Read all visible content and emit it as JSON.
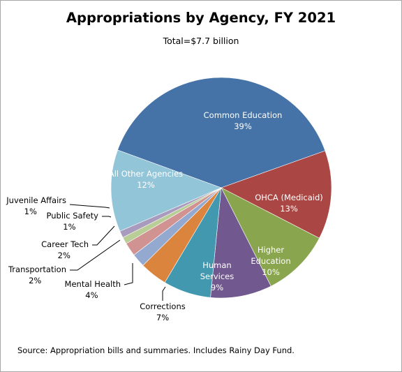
{
  "chart_data": {
    "type": "pie",
    "title": "Appropriations by Agency, FY 2021",
    "subtitle": "Total=$7.7 billion",
    "source": "Source:  Appropriation bills and summaries. Includes Rainy Day Fund.",
    "slices": [
      {
        "label_lines": [
          "Common Education"
        ],
        "label": "Common Education",
        "value": 39,
        "value_label": "39%",
        "color": "#4572a7",
        "label_inside": true
      },
      {
        "label_lines": [
          "OHCA (Medicaid)"
        ],
        "label": "OHCA (Medicaid)",
        "value": 13,
        "value_label": "13%",
        "color": "#aa4643",
        "label_inside": true
      },
      {
        "label_lines": [
          "Higher",
          "Education"
        ],
        "label": "Higher Education",
        "value": 10,
        "value_label": "10%",
        "color": "#89a54e",
        "label_inside": true
      },
      {
        "label_lines": [
          "Human",
          "Services"
        ],
        "label": "Human Services",
        "value": 9,
        "value_label": "9%",
        "color": "#71588f",
        "label_inside": true
      },
      {
        "label_lines": [
          "Corrections"
        ],
        "label": "Corrections",
        "value": 7,
        "value_label": "7%",
        "color": "#4198af",
        "label_inside": false
      },
      {
        "label_lines": [
          "Mental Health"
        ],
        "label": "Mental Health",
        "value": 4,
        "value_label": "4%",
        "color": "#db843d",
        "label_inside": false
      },
      {
        "label_lines": [
          "Transportation"
        ],
        "label": "Transportation",
        "value": 2,
        "value_label": "2%",
        "color": "#93a9cf",
        "label_inside": false
      },
      {
        "label_lines": [
          "Career Tech"
        ],
        "label": "Career Tech",
        "value": 2,
        "value_label": "2%",
        "color": "#d19392",
        "label_inside": false
      },
      {
        "label_lines": [
          "Public Safety"
        ],
        "label": "Public Safety",
        "value": 1,
        "value_label": "1%",
        "color": "#b9cd96",
        "label_inside": false
      },
      {
        "label_lines": [
          "Juvenile Affairs"
        ],
        "label": "Juvenile Affairs",
        "value": 1,
        "value_label": "1%",
        "color": "#a99bbd",
        "label_inside": false
      },
      {
        "label_lines": [
          "All Other Agencies"
        ],
        "label": "All Other Agencies",
        "value": 12,
        "value_label": "12%",
        "color": "#92c5d8",
        "label_inside": true
      }
    ]
  }
}
